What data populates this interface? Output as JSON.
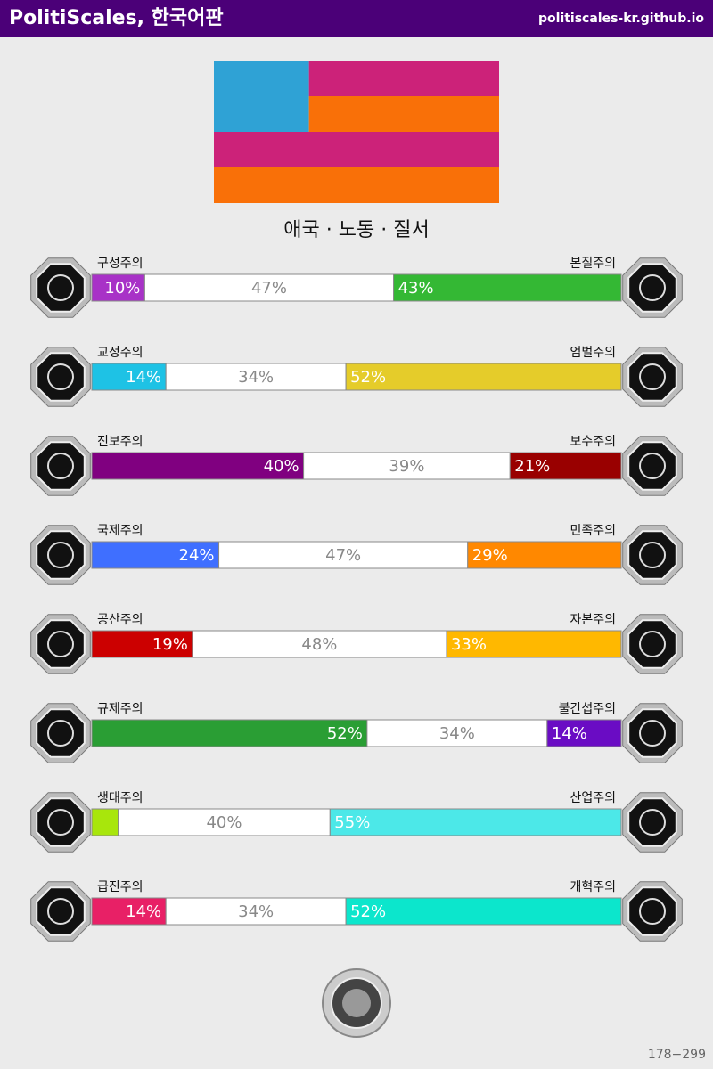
{
  "header": {
    "title": "PolitiScales, 한국어판",
    "site": "politiscales-kr.github.io"
  },
  "flag": {
    "colors": [
      "#2fa2d5",
      "#cc2279",
      "#f97008"
    ]
  },
  "result_title": "애국 · 노동 · 질서",
  "axes": [
    {
      "left_name": "구성주의",
      "right_name": "본질주의",
      "segments": [
        {
          "value": 10,
          "label": "10%",
          "color": "#a832c7"
        },
        {
          "value": 47,
          "label": "47%"
        },
        {
          "value": 43,
          "label": "43%",
          "color": "#34b834"
        }
      ]
    },
    {
      "left_name": "교정주의",
      "right_name": "엄벌주의",
      "segments": [
        {
          "value": 14,
          "label": "14%",
          "color": "#1ec2e5"
        },
        {
          "value": 34,
          "label": "34%"
        },
        {
          "value": 52,
          "label": "52%",
          "color": "#e5cc2a"
        }
      ]
    },
    {
      "left_name": "진보주의",
      "right_name": "보수주의",
      "segments": [
        {
          "value": 40,
          "label": "40%",
          "color": "#800080"
        },
        {
          "value": 39,
          "label": "39%"
        },
        {
          "value": 21,
          "label": "21%",
          "color": "#990000"
        }
      ]
    },
    {
      "left_name": "국제주의",
      "right_name": "민족주의",
      "segments": [
        {
          "value": 24,
          "label": "24%",
          "color": "#3f6fff"
        },
        {
          "value": 47,
          "label": "47%"
        },
        {
          "value": 29,
          "label": "29%",
          "color": "#ff8800"
        }
      ]
    },
    {
      "left_name": "공산주의",
      "right_name": "자본주의",
      "segments": [
        {
          "value": 19,
          "label": "19%",
          "color": "#cc0000"
        },
        {
          "value": 48,
          "label": "48%"
        },
        {
          "value": 33,
          "label": "33%",
          "color": "#ffb800"
        }
      ]
    },
    {
      "left_name": "규제주의",
      "right_name": "불간섭주의",
      "segments": [
        {
          "value": 52,
          "label": "52%",
          "color": "#2a9e34"
        },
        {
          "value": 34,
          "label": "34%"
        },
        {
          "value": 14,
          "label": "14%",
          "color": "#6a0cc4"
        }
      ]
    },
    {
      "left_name": "생태주의",
      "right_name": "산업주의",
      "segments": [
        {
          "value": 5,
          "color": "#a8e60c"
        },
        {
          "value": 40,
          "label": "40%"
        },
        {
          "value": 55,
          "label": "55%",
          "color": "#4ce8e8"
        }
      ]
    },
    {
      "left_name": "급진주의",
      "right_name": "개혁주의",
      "segments": [
        {
          "value": 14,
          "label": "14%",
          "color": "#e82066"
        },
        {
          "value": 34,
          "label": "34%"
        },
        {
          "value": 52,
          "label": "52%",
          "color": "#0ce6cc"
        }
      ]
    }
  ],
  "footer": "178−299"
}
